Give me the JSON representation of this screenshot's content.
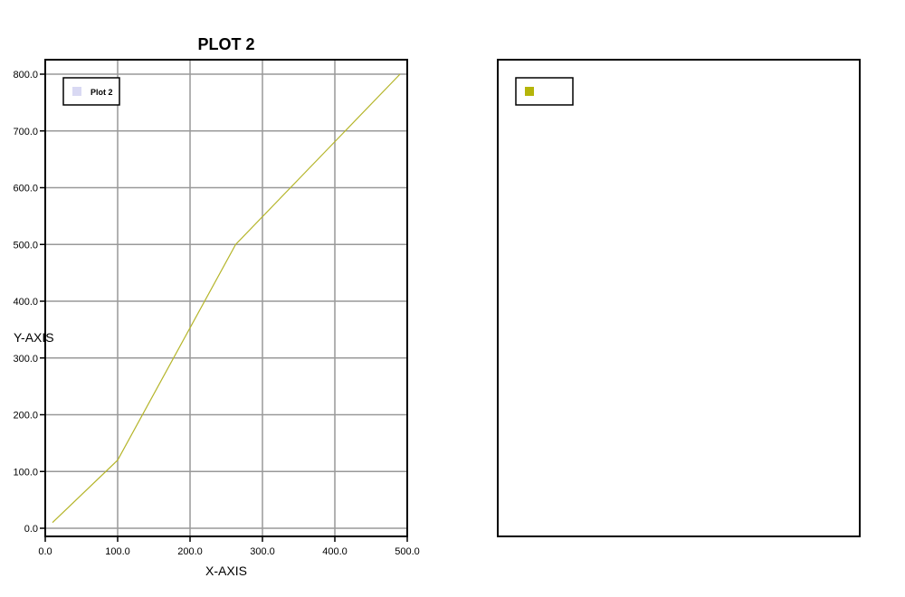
{
  "chart_data": [
    {
      "type": "line",
      "title": "PLOT 2",
      "xlabel": "X-AXIS",
      "ylabel": "Y-AXIS",
      "xlim": [
        0,
        500
      ],
      "ylim": [
        0,
        800
      ],
      "xticks": [
        "0.0",
        "100.0",
        "200.0",
        "300.0",
        "400.0",
        "500.0"
      ],
      "yticks": [
        "0.0",
        "100.0",
        "200.0",
        "300.0",
        "400.0",
        "500.0",
        "600.0",
        "700.0",
        "800.0"
      ],
      "grid": true,
      "legend": {
        "position": "top-left",
        "entries": [
          {
            "label": "Plot 2",
            "color": "#d9d9f3"
          }
        ]
      },
      "series": [
        {
          "color": "#b5b52a",
          "x": [
            10,
            100,
            263,
            490
          ],
          "y": [
            10,
            120,
            500,
            800
          ]
        }
      ]
    },
    {
      "type": "line",
      "title": "",
      "legend": {
        "position": "top-left",
        "entries": [
          {
            "label": "",
            "color": "#b5b50a"
          }
        ]
      },
      "series": []
    }
  ]
}
